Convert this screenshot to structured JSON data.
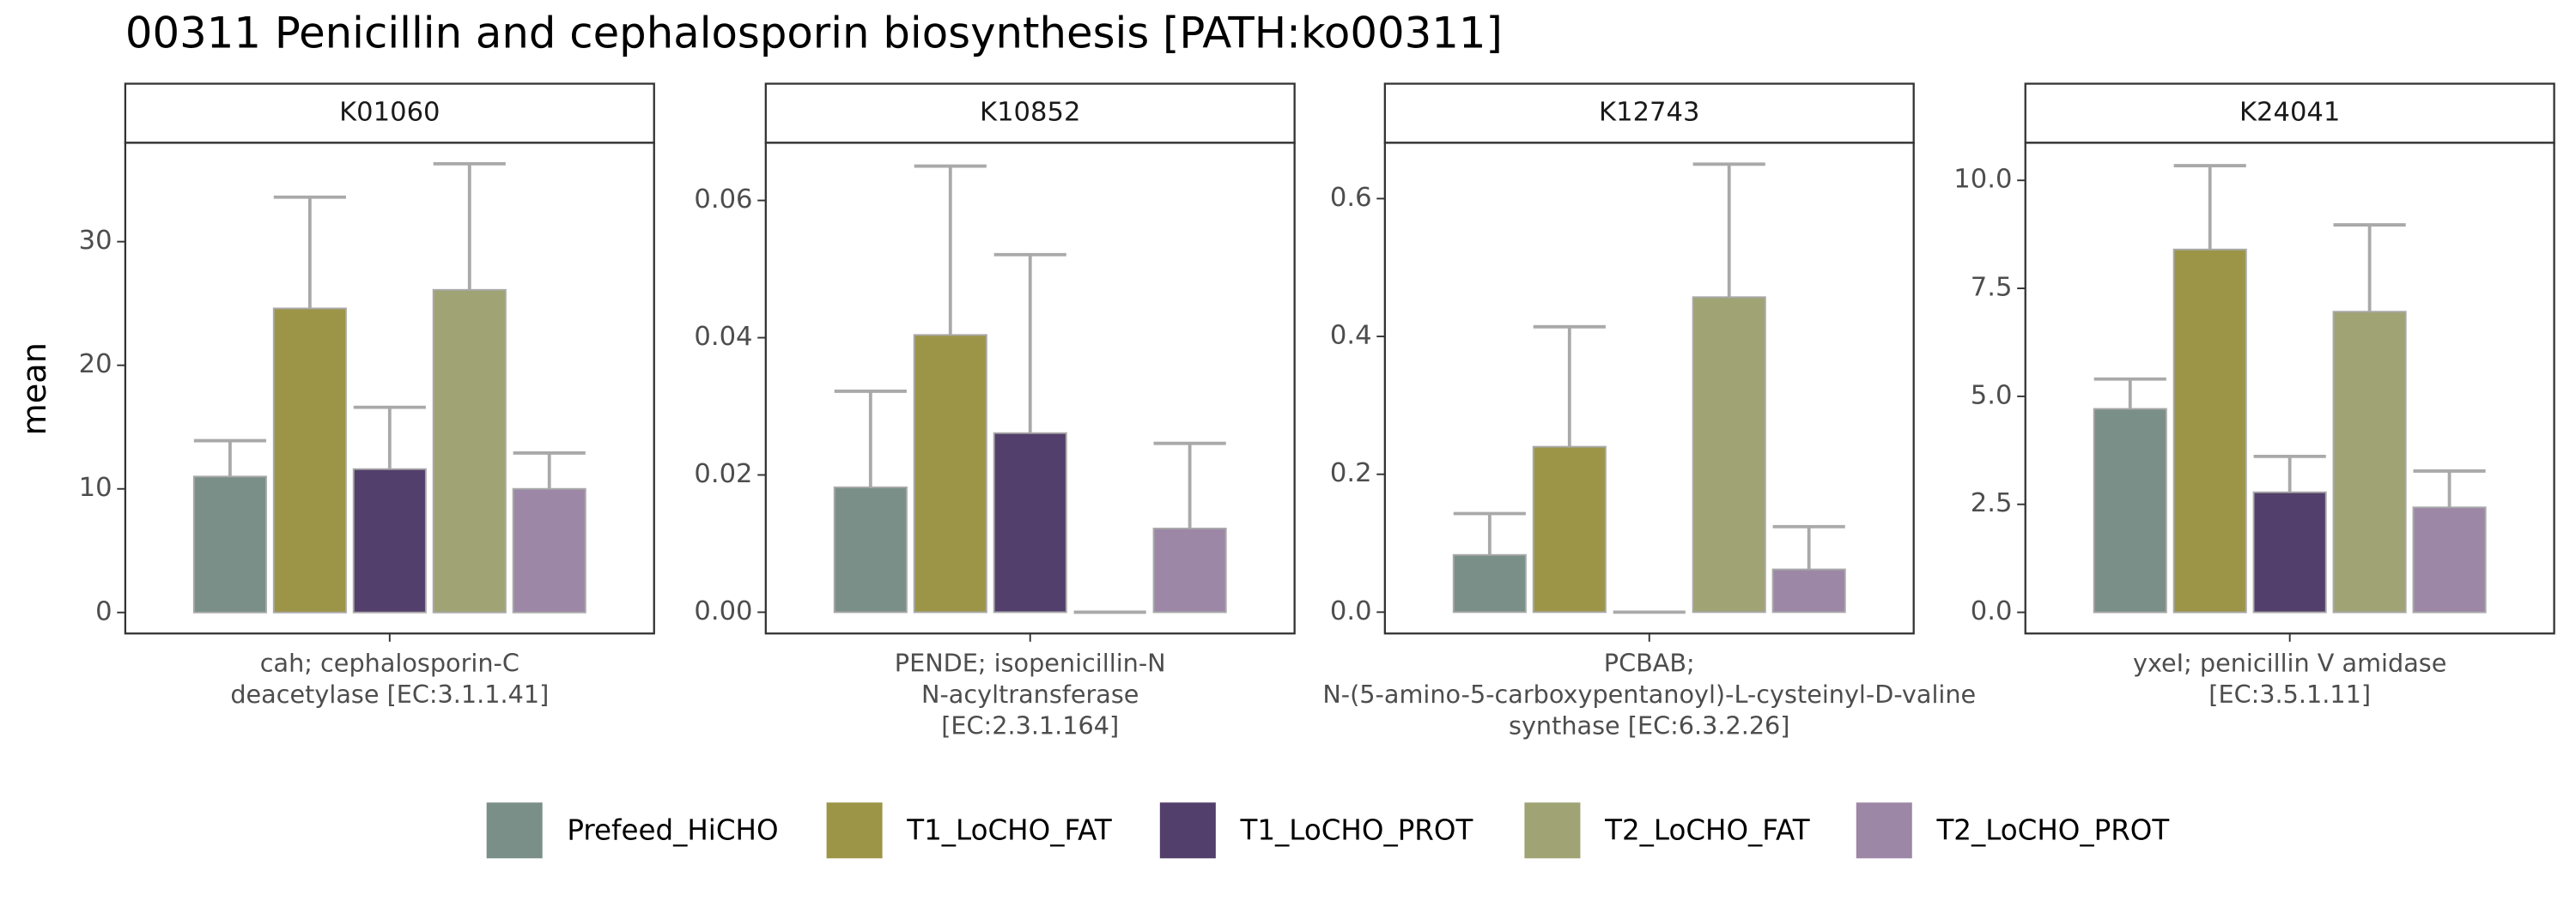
{
  "title": "00311 Penicillin and cephalosporin biosynthesis [PATH:ko00311]",
  "y_label": "mean",
  "series": [
    {
      "name": "Prefeed_HiCHO",
      "color": "#7a8f87"
    },
    {
      "name": "T1_LoCHO_FAT",
      "color": "#9c9548"
    },
    {
      "name": "T1_LoCHO_PROT",
      "color": "#533f6b"
    },
    {
      "name": "T2_LoCHO_FAT",
      "color": "#a0a374"
    },
    {
      "name": "T2_LoCHO_PROT",
      "color": "#9c87a6"
    }
  ],
  "chart_data": [
    {
      "type": "bar",
      "strip": "K01060",
      "xlabel": [
        "cah; cephalosporin-C",
        "deacetylase [EC:3.1.1.41]"
      ],
      "values": [
        11.0,
        24.6,
        11.6,
        26.1,
        10.0
      ],
      "errors": [
        2.9,
        9.0,
        5.0,
        10.2,
        2.9
      ],
      "ylim": [
        -1.7,
        38
      ],
      "yticks": [
        0,
        10,
        20,
        30
      ]
    },
    {
      "type": "bar",
      "strip": "K10852",
      "xlabel": [
        "PENDE; isopenicillin-N",
        "N-acyltransferase",
        "[EC:2.3.1.164]"
      ],
      "values": [
        0.0182,
        0.0404,
        0.0261,
        0,
        0.0122
      ],
      "errors": [
        0.014,
        0.0246,
        0.026,
        0,
        0.0124
      ],
      "ylim": [
        -0.0031,
        0.0684
      ],
      "yticks": [
        {
          "value": 0,
          "label": "0.00"
        },
        {
          "value": 0.02,
          "label": "0.02"
        },
        {
          "value": 0.04,
          "label": "0.04"
        },
        {
          "value": 0.06,
          "label": "0.06"
        }
      ]
    },
    {
      "type": "bar",
      "strip": "K12743",
      "xlabel": [
        "PCBAB;",
        "N-(5-amino-5-carboxypentanoyl)-L-cysteinyl-D-valine",
        "synthase [EC:6.3.2.26]"
      ],
      "values": [
        0.083,
        0.24,
        0,
        0.457,
        0.062
      ],
      "errors": [
        0.06,
        0.174,
        0,
        0.193,
        0.062
      ],
      "ylim": [
        -0.031,
        0.681
      ],
      "yticks": [
        {
          "value": 0,
          "label": "0.0"
        },
        0.2,
        0.4,
        0.6
      ]
    },
    {
      "type": "bar",
      "strip": "K24041",
      "xlabel": [
        "yxeI; penicillin V amidase",
        "[EC:3.5.1.11]"
      ],
      "values": [
        4.71,
        8.4,
        2.78,
        6.96,
        2.43
      ],
      "errors": [
        0.69,
        1.94,
        0.83,
        2.01,
        0.84
      ],
      "ylim": [
        -0.49,
        10.87
      ],
      "yticks": [
        {
          "value": 0,
          "label": "0.0"
        },
        2.5,
        {
          "value": 5,
          "label": "5.0"
        },
        7.5,
        {
          "value": 10,
          "label": "10.0"
        }
      ]
    }
  ]
}
